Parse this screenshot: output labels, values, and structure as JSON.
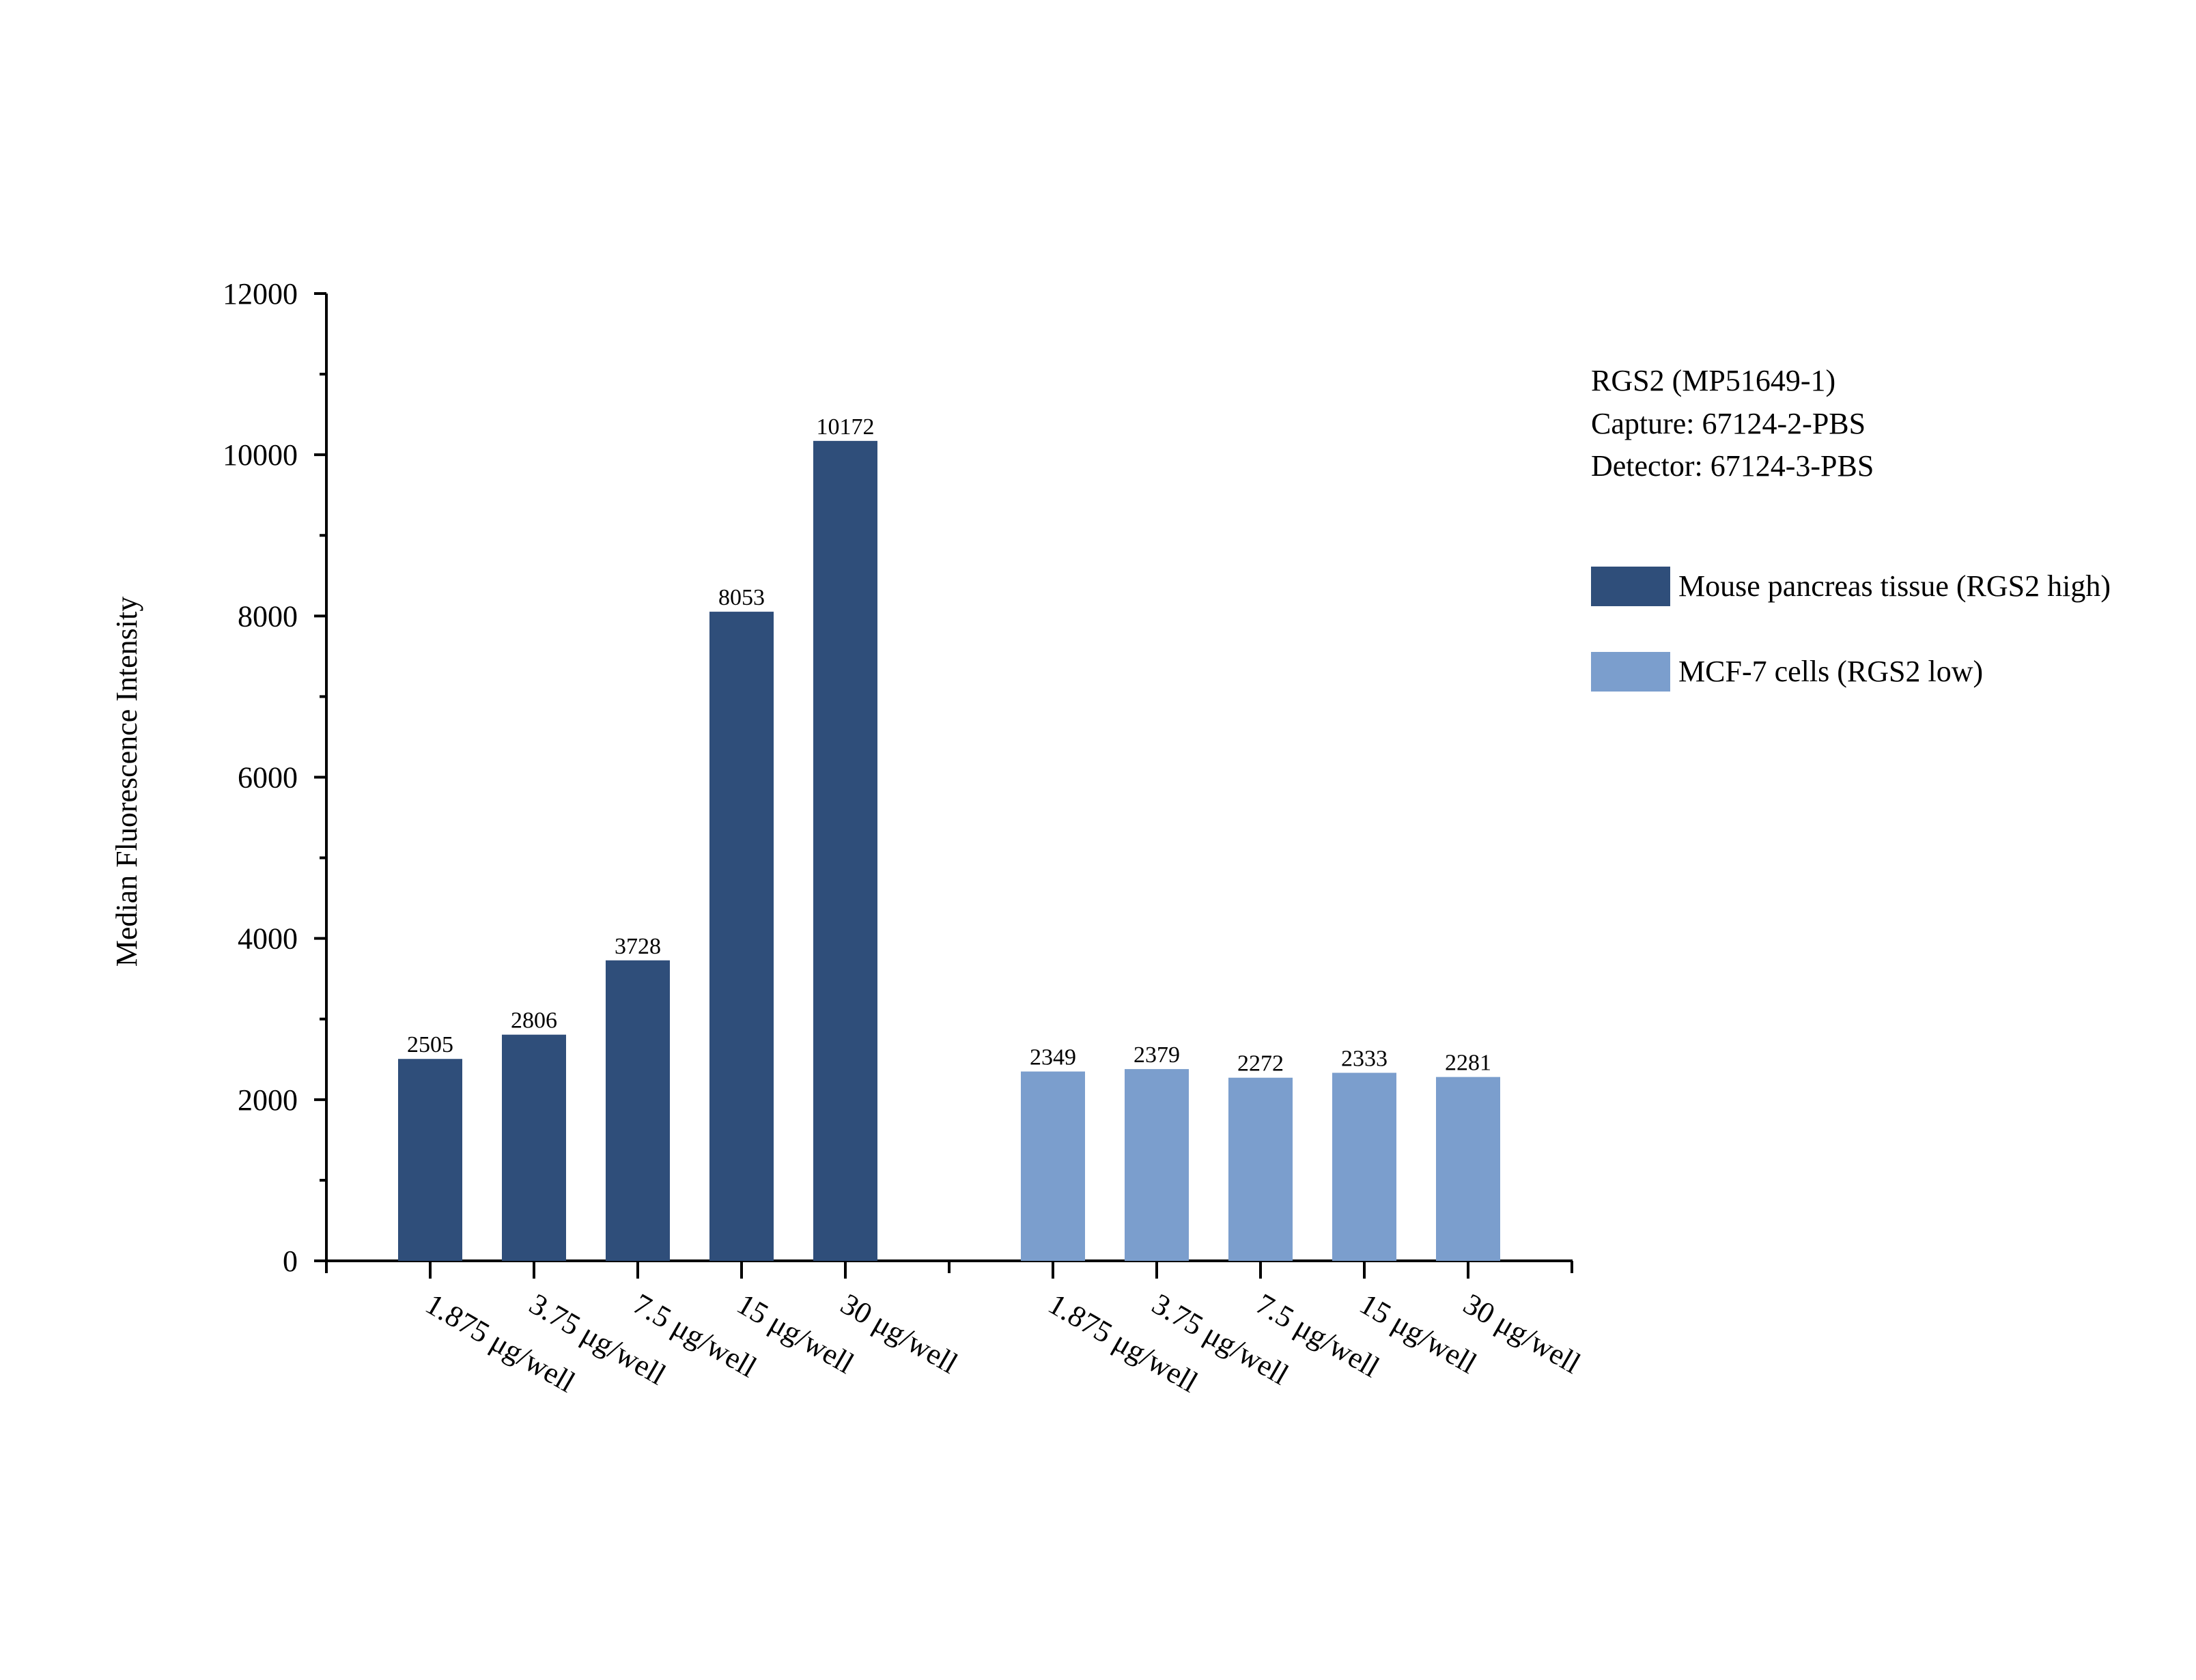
{
  "chart_data": {
    "type": "bar",
    "categories": [
      "1.875 μg/well",
      "3.75 μg/well",
      "7.5 μg/well",
      "15 μg/well",
      "30 μg/well"
    ],
    "series": [
      {
        "name": "Mouse pancreas tissue (RGS2 high)",
        "values": [
          2505,
          2806,
          3728,
          8053,
          10172
        ],
        "color": "#2f4e7a"
      },
      {
        "name": "MCF-7 cells (RGS2 low)",
        "values": [
          2349,
          2379,
          2272,
          2333,
          2281
        ],
        "color": "#7b9ecd"
      }
    ],
    "title": "",
    "xlabel": "",
    "ylabel": "Median Fluorescence Intensity",
    "ylim": [
      0,
      12000
    ],
    "yticks": [
      0,
      2000,
      4000,
      6000,
      8000,
      10000,
      12000
    ],
    "grid": false,
    "legend_position": "right"
  },
  "annotation": {
    "lines": [
      "RGS2 (MP51649-1)",
      "Capture: 67124-2-PBS",
      "Detector: 67124-3-PBS"
    ]
  }
}
